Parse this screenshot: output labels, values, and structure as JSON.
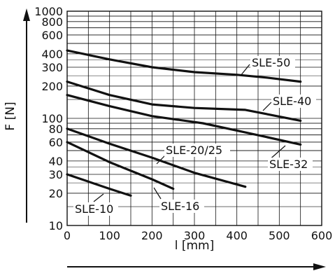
{
  "chart_data": {
    "type": "line",
    "xlabel": "l [mm]",
    "ylabel": "F [N]",
    "xlim": [
      0,
      600
    ],
    "ylim": [
      10,
      1000
    ],
    "yscale": "log",
    "grid": true,
    "x_ticks": [
      0,
      100,
      200,
      300,
      400,
      500,
      600
    ],
    "y_ticks": [
      10,
      20,
      30,
      40,
      60,
      80,
      100,
      200,
      300,
      400,
      600,
      800,
      1000
    ],
    "series": [
      {
        "name": "SLE-50",
        "x": [
          0,
          100,
          200,
          300,
          400,
          470,
          550
        ],
        "y": [
          430,
          355,
          300,
          270,
          255,
          240,
          220
        ]
      },
      {
        "name": "SLE-40",
        "x": [
          0,
          100,
          200,
          300,
          420,
          550
        ],
        "y": [
          220,
          165,
          135,
          125,
          120,
          95
        ]
      },
      {
        "name": "SLE-32",
        "x": [
          0,
          100,
          200,
          320,
          400,
          550
        ],
        "y": [
          165,
          130,
          105,
          90,
          77,
          57
        ]
      },
      {
        "name": "SLE-20/25",
        "x": [
          0,
          100,
          200,
          300,
          420
        ],
        "y": [
          80,
          58,
          43,
          31,
          23
        ]
      },
      {
        "name": "SLE-16",
        "x": [
          0,
          100,
          200,
          250
        ],
        "y": [
          60,
          39,
          27,
          22
        ]
      },
      {
        "name": "SLE-10",
        "x": [
          0,
          100,
          150
        ],
        "y": [
          30,
          22,
          19
        ]
      }
    ]
  },
  "colors": {
    "line": "#111111",
    "grid": "#111111",
    "background": "#ffffff"
  }
}
